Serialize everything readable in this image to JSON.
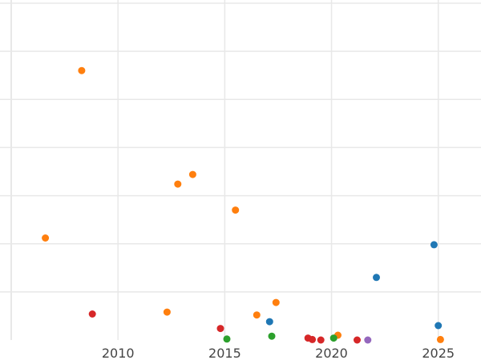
{
  "chart_data": {
    "type": "scatter",
    "title": "",
    "xlabel": "",
    "ylabel": "",
    "xlim": [
      2005,
      2027
    ],
    "ylim": [
      0,
      35
    ],
    "x_ticks": [
      2010,
      2015,
      2020,
      2025
    ],
    "x_tick_labels": [
      "2010",
      "2015",
      "2020",
      "2025"
    ],
    "y_gridlines": [
      5,
      10,
      15,
      20,
      25,
      30,
      35
    ],
    "grid": true,
    "legend": "none",
    "colors": {
      "blue": "#1f77b4",
      "orange": "#ff7f0e",
      "green": "#2ca02c",
      "red": "#d62728",
      "purple": "#9467bd",
      "grid": "#e8e8e8",
      "tick_text": "#444444"
    },
    "series": [
      {
        "color_key": "orange",
        "points": [
          {
            "x": 2006.6,
            "y": 10.6
          },
          {
            "x": 2008.3,
            "y": 28.0
          },
          {
            "x": 2012.3,
            "y": 2.9
          },
          {
            "x": 2012.8,
            "y": 16.2
          },
          {
            "x": 2013.5,
            "y": 17.2
          },
          {
            "x": 2015.5,
            "y": 13.5
          },
          {
            "x": 2016.5,
            "y": 2.6
          },
          {
            "x": 2017.4,
            "y": 3.9
          },
          {
            "x": 2020.3,
            "y": 0.5
          },
          {
            "x": 2025.1,
            "y": 0.05
          }
        ]
      },
      {
        "color_key": "red",
        "points": [
          {
            "x": 2008.8,
            "y": 2.7
          },
          {
            "x": 2014.8,
            "y": 1.2
          },
          {
            "x": 2018.9,
            "y": 0.2
          },
          {
            "x": 2019.1,
            "y": 0.05
          },
          {
            "x": 2019.5,
            "y": 0.0
          },
          {
            "x": 2021.2,
            "y": 0.0
          }
        ]
      },
      {
        "color_key": "green",
        "points": [
          {
            "x": 2015.1,
            "y": 0.1
          },
          {
            "x": 2017.2,
            "y": 0.4
          },
          {
            "x": 2020.1,
            "y": 0.2
          }
        ]
      },
      {
        "color_key": "blue",
        "points": [
          {
            "x": 2017.1,
            "y": 1.9
          },
          {
            "x": 2022.1,
            "y": 6.5
          },
          {
            "x": 2024.8,
            "y": 9.9
          },
          {
            "x": 2025.0,
            "y": 1.5
          }
        ]
      },
      {
        "color_key": "purple",
        "points": [
          {
            "x": 2021.7,
            "y": 0.0
          }
        ]
      }
    ]
  }
}
